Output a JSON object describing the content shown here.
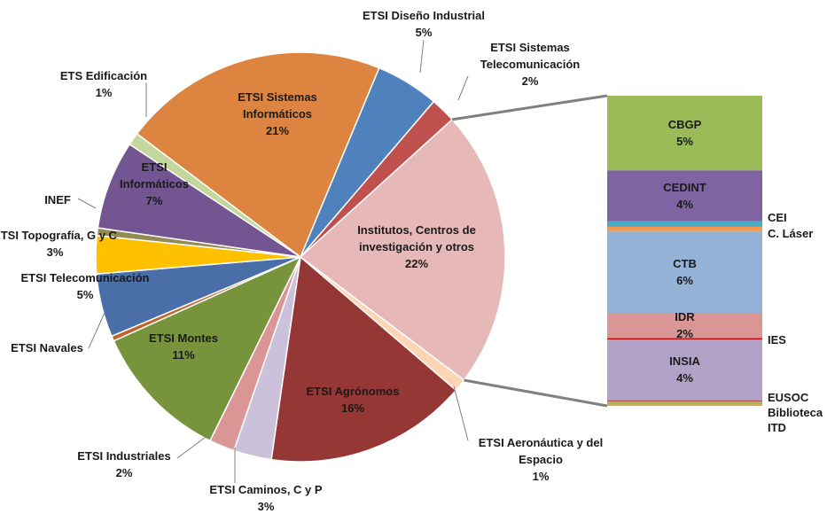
{
  "chart_data": {
    "type": "pie",
    "categories": [
      "ETSI Sistemas Informáticos",
      "ETSI Diseño Industrial",
      "ETSI Sistemas Telecomunicación",
      "Institutos, Centros de investigación y otros",
      "ETSI Aeronáutica y del Espacio",
      "ETSI Agrónomos",
      "ETSI Caminos, C y P",
      "ETSI Industriales",
      "ETSI Montes",
      "ETSI Navales",
      "ETSI Telecomunicación",
      "ETSI Topografía, G y C",
      "INEF",
      "ETSI Informáticos",
      "ETS Edificación"
    ],
    "values": [
      21,
      5,
      2,
      22,
      1,
      16,
      3,
      2,
      11,
      0.4,
      5,
      3,
      0.6,
      7,
      1
    ],
    "value_labels": [
      "21%",
      "5%",
      "2%",
      "22%",
      "1%",
      "16%",
      "3%",
      "2%",
      "11%",
      null,
      "5%",
      "3%",
      null,
      "7%",
      "1%"
    ],
    "colors": [
      "#dd8540",
      "#4f81bd",
      "#c0504d",
      "#e6b9b8",
      "#fcd5b5",
      "#953735",
      "#ccc1da",
      "#d99694",
      "#77933c",
      "#c0642a",
      "#4a6fa8",
      "#ffc000",
      "#948a54",
      "#725591",
      "#c3d69b"
    ],
    "bar": {
      "categories": [
        "CBGP",
        "CEDINT",
        "CEI",
        "C. Láser",
        "CTB",
        "IDR",
        "IES",
        "INSIA",
        "EUSOC",
        "Biblioteca",
        "ITD"
      ],
      "values": [
        5.3,
        3.6,
        0.4,
        0.3,
        5.8,
        1.8,
        0.1,
        4.3,
        0.1,
        0.2,
        0.1
      ],
      "value_labels": [
        "5%",
        "4%",
        null,
        null,
        "6%",
        "2%",
        null,
        "4%",
        null,
        null,
        null
      ],
      "colors": [
        "#9bbb59",
        "#8064a2",
        "#4bacc6",
        "#f79646",
        "#95b3d7",
        "#d99694",
        "#c00000",
        "#b3a2c7",
        "#c0504d",
        "#9bbb59",
        "#f79646"
      ]
    }
  }
}
